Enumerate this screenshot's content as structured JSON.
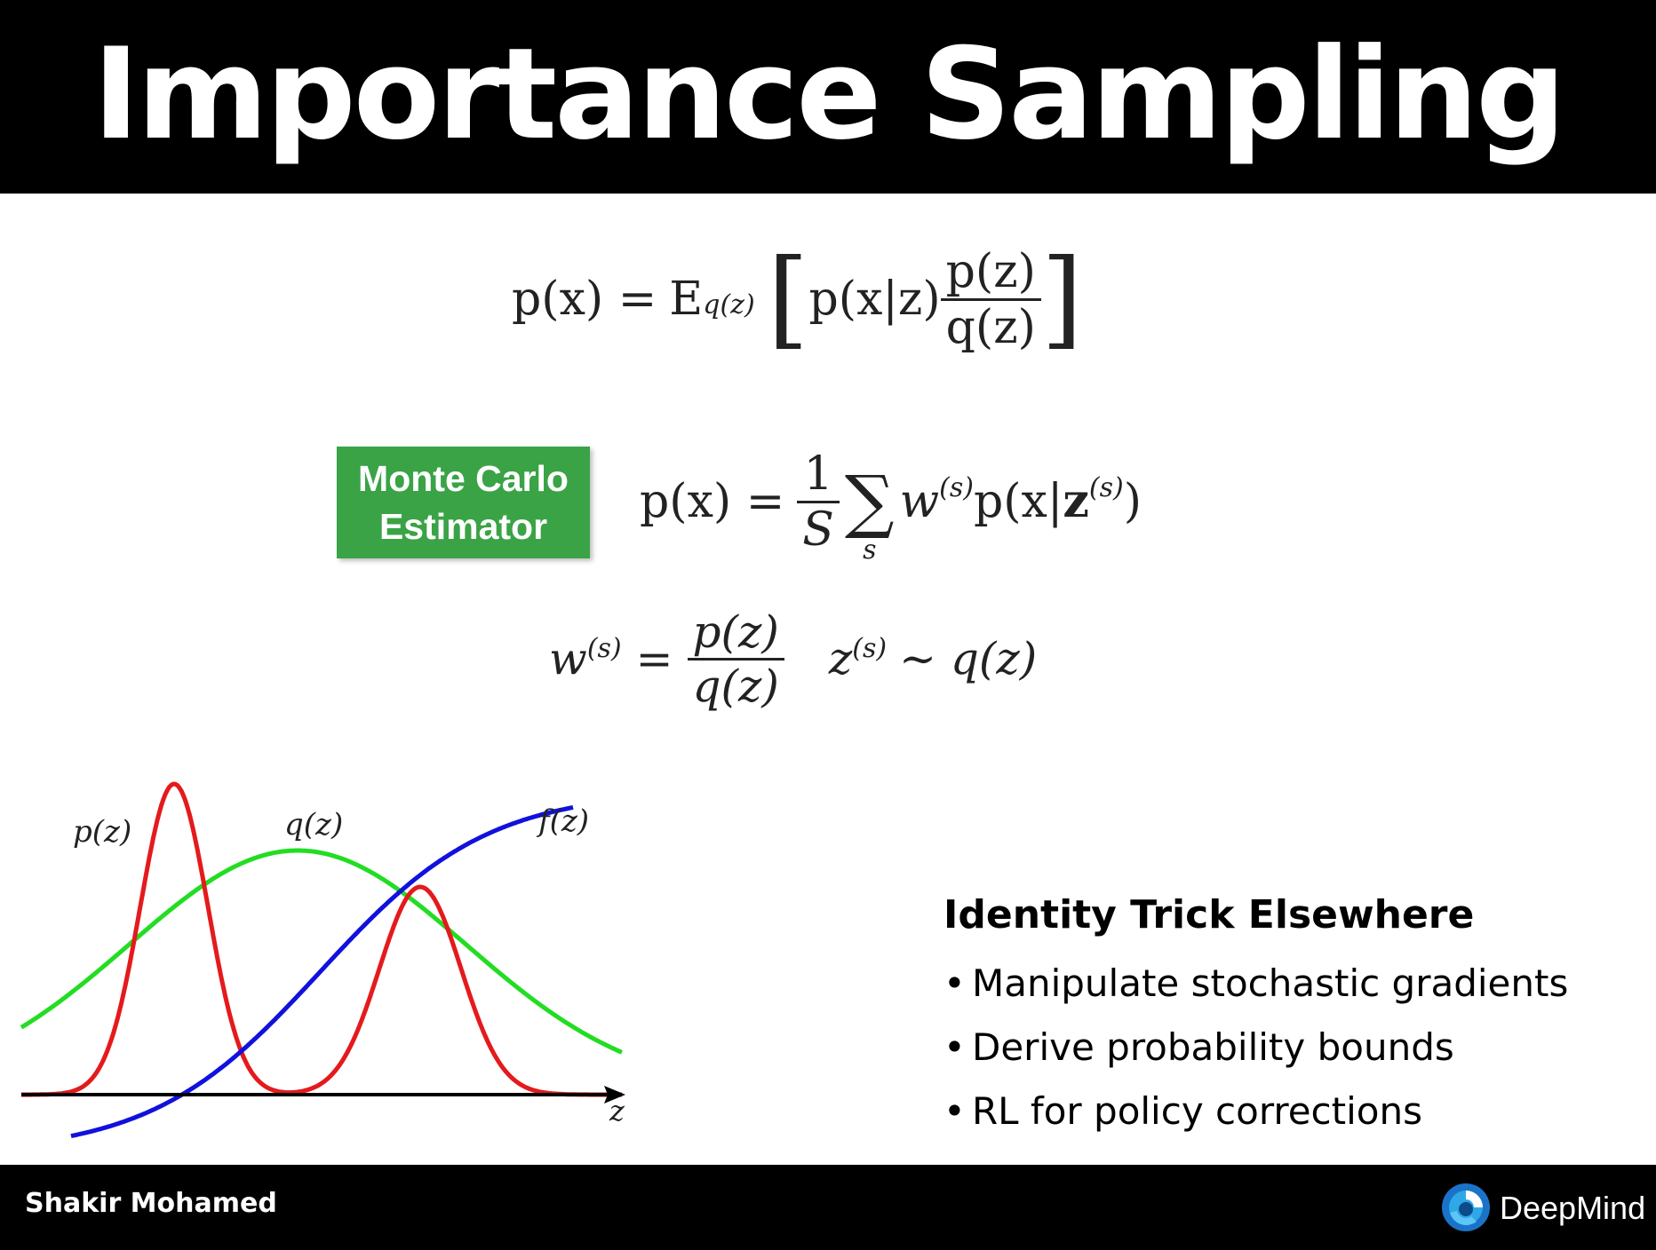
{
  "slide": {
    "title": "Importance Sampling",
    "author": "Shakir Mohamed",
    "brand": "DeepMind"
  },
  "equations": {
    "expectation": {
      "lhs": "p(x) =",
      "expect": "E",
      "sub": "q(z)",
      "inner": "p(x|z)",
      "num": "p(z)",
      "den": "q(z)"
    },
    "estimator": {
      "label_line1": "Monte Carlo",
      "label_line2": "Estimator",
      "lhs": "p(x) =",
      "one": "1",
      "S": "S",
      "sum": "∑",
      "sum_sub": "s",
      "w": "w",
      "sup": "(s)",
      "px": "p(x|",
      "z": "z",
      "close": ")"
    },
    "weight": {
      "w": "w",
      "sup": "(s)",
      "eq": "=",
      "num": "p(z)",
      "den": "q(z)",
      "z": "z",
      "tilde": "∼ q(z)"
    }
  },
  "chart_data": {
    "type": "line",
    "series": [
      {
        "name": "p(z)",
        "color": "#e41a1c"
      },
      {
        "name": "q(z)",
        "color": "#22dd22"
      },
      {
        "name": "f(z)",
        "color": "#1111dd"
      }
    ],
    "xlabel": "z"
  },
  "sidebar": {
    "heading": "Identity Trick Elsewhere",
    "bullets": [
      "Manipulate stochastic gradients",
      "Derive probability bounds",
      "RL for policy corrections"
    ]
  }
}
